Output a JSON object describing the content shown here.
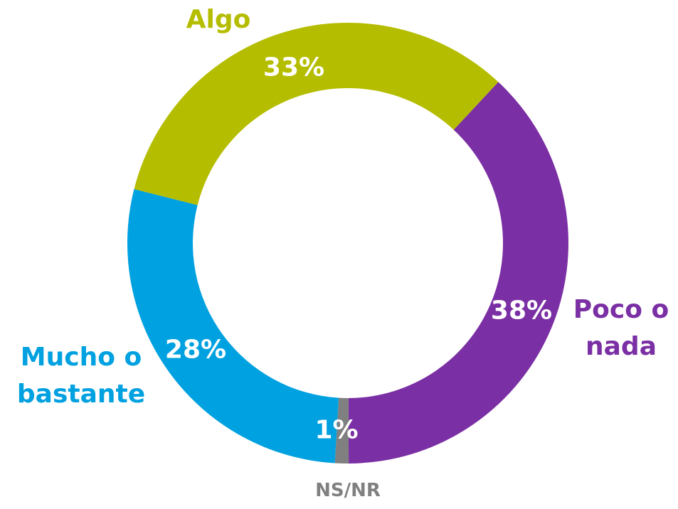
{
  "chart_data": {
    "type": "donut",
    "categories": [
      "Poco o nada",
      "NS/NR",
      "Mucho o bastante",
      "Algo"
    ],
    "values": [
      38,
      1,
      28,
      33
    ],
    "value_labels": [
      "38%",
      "1%",
      "28%",
      "33%"
    ],
    "colors": [
      "#7b2fa4",
      "#808080",
      "#00a1e0",
      "#b5bd00"
    ]
  }
}
